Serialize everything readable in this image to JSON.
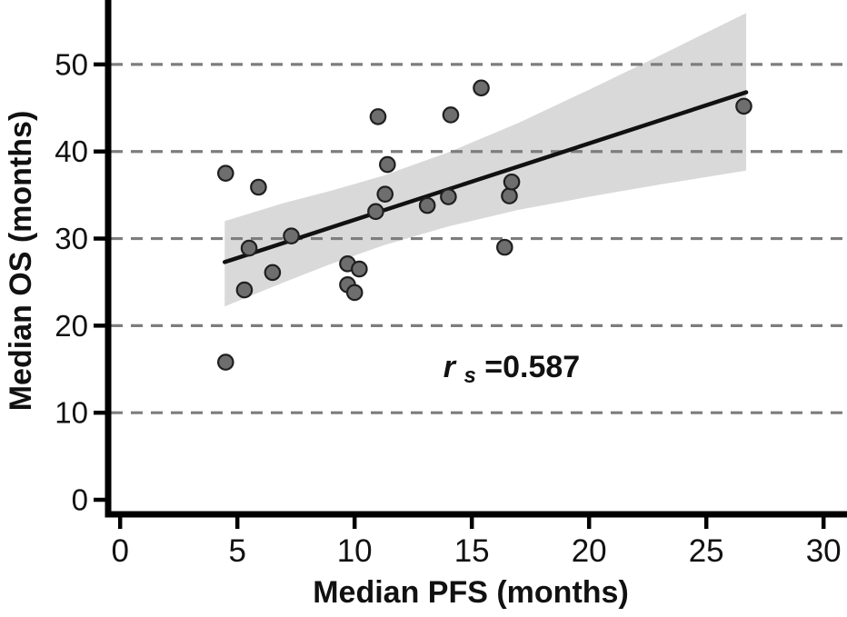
{
  "chart_data": {
    "type": "scatter",
    "title": "",
    "xlabel": "Median PFS (months)",
    "ylabel": "Median OS (months)",
    "xlim": [
      -0.55,
      31.0
    ],
    "ylim": [
      -1.67,
      57.4
    ],
    "xticks": [
      0,
      5,
      10,
      15,
      20,
      25,
      30
    ],
    "yticks": [
      0,
      10,
      20,
      30,
      40,
      50
    ],
    "gridlines_y": [
      10,
      20,
      30,
      40,
      50
    ],
    "grid_style": "dashed",
    "legend": "none",
    "annotation": {
      "var": "r",
      "sub": "s",
      "rest": "=0.587",
      "x": 16.7,
      "y": 15.3
    },
    "points": [
      {
        "x": 4.5,
        "y": 37.5
      },
      {
        "x": 4.5,
        "y": 15.8
      },
      {
        "x": 5.3,
        "y": 24.1
      },
      {
        "x": 5.5,
        "y": 28.9
      },
      {
        "x": 5.9,
        "y": 35.9
      },
      {
        "x": 6.5,
        "y": 26.1
      },
      {
        "x": 7.3,
        "y": 30.3
      },
      {
        "x": 9.7,
        "y": 27.1
      },
      {
        "x": 9.7,
        "y": 24.7
      },
      {
        "x": 10.0,
        "y": 23.8
      },
      {
        "x": 10.2,
        "y": 26.5
      },
      {
        "x": 10.9,
        "y": 33.1
      },
      {
        "x": 11.0,
        "y": 44.0
      },
      {
        "x": 11.3,
        "y": 35.1
      },
      {
        "x": 11.4,
        "y": 38.5
      },
      {
        "x": 13.1,
        "y": 33.8
      },
      {
        "x": 14.0,
        "y": 34.8
      },
      {
        "x": 14.1,
        "y": 44.2
      },
      {
        "x": 15.4,
        "y": 47.3
      },
      {
        "x": 16.4,
        "y": 29.0
      },
      {
        "x": 16.6,
        "y": 34.9
      },
      {
        "x": 16.7,
        "y": 36.5
      },
      {
        "x": 26.6,
        "y": 45.2
      }
    ],
    "regression": {
      "line": {
        "x1": 4.46,
        "y1": 27.3,
        "x2": 26.7,
        "y2": 46.8
      },
      "band": {
        "x": [
          4.46,
          7.0,
          9.0,
          11.2,
          14.0,
          17.0,
          20.0,
          23.0,
          26.7
        ],
        "top": [
          32.0,
          34.1,
          35.5,
          37.2,
          39.9,
          43.3,
          47.1,
          51.0,
          55.9
        ],
        "bottom": [
          22.2,
          25.0,
          27.1,
          29.2,
          31.4,
          33.3,
          34.8,
          36.2,
          37.8
        ]
      }
    },
    "colors": {
      "point_fill": "#6e6e6e",
      "point_stroke": "#1f1f1f",
      "line": "#111111",
      "band": "#d9d9d9",
      "grid": "#7d7d7d",
      "axis": "#000000",
      "text": "#111111"
    }
  }
}
